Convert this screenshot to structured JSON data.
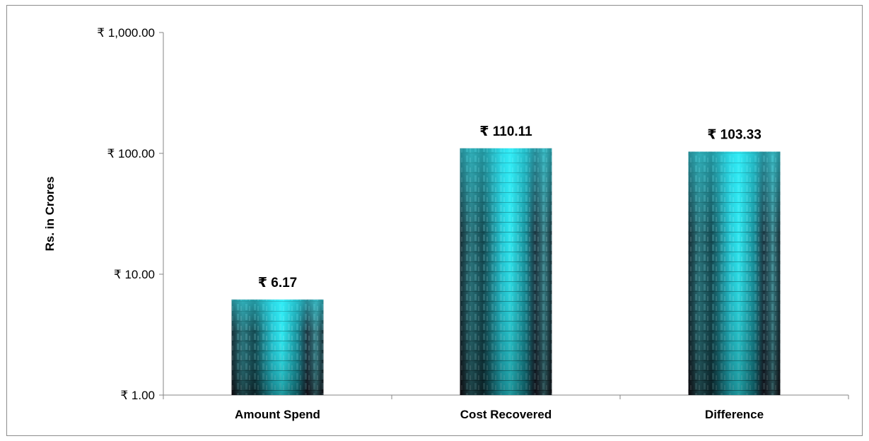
{
  "chart_data": {
    "type": "bar",
    "ylabel": "Rs. in Crores",
    "yscale": "log",
    "ylim": [
      1,
      1000
    ],
    "yticks": [
      1,
      10,
      100,
      1000
    ],
    "ytick_labels": [
      "₹ 1.00",
      "₹ 10.00",
      "₹ 100.00",
      "₹ 1,000.00"
    ],
    "categories": [
      "Amount Spend",
      "Cost Recovered",
      "Difference"
    ],
    "values": [
      6.17,
      110.11,
      103.33
    ],
    "data_labels": [
      "₹ 6.17",
      "₹ 110.11",
      "₹ 103.33"
    ],
    "grid": false,
    "legend": "none",
    "bar_color": "#1fd3de",
    "bar_dark_color": "#130d14"
  }
}
